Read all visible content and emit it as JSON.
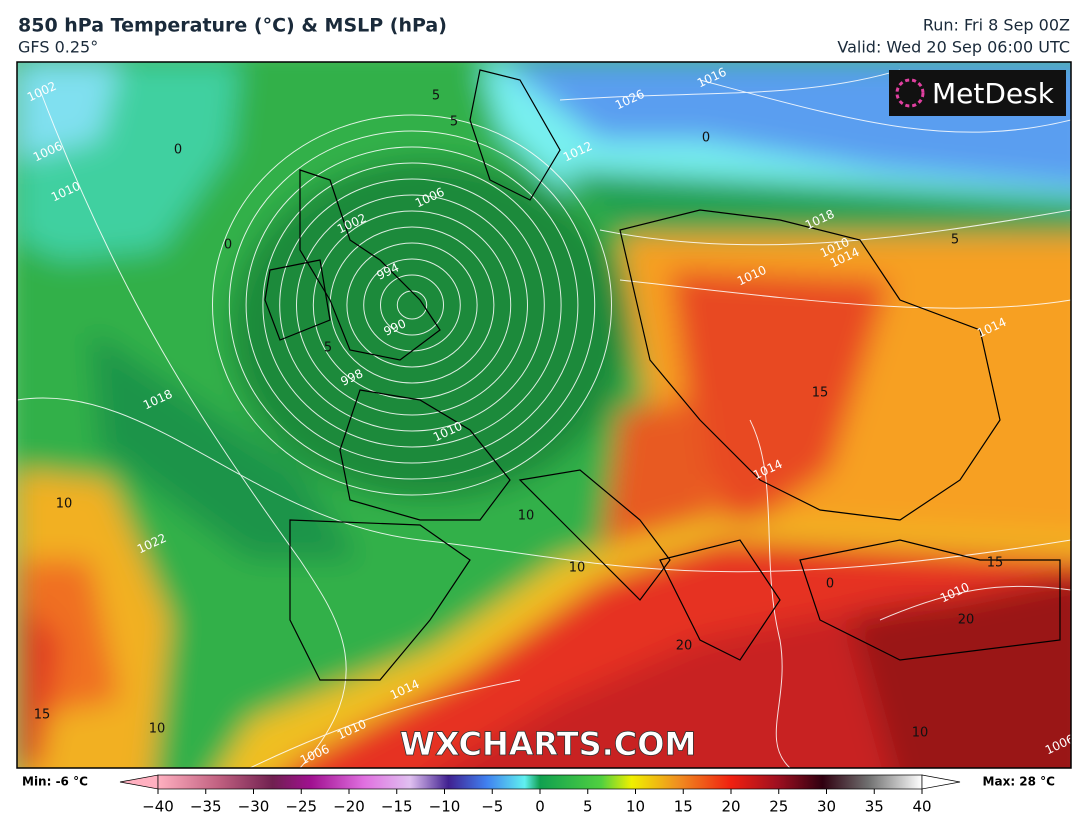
{
  "header": {
    "title": "850 hPa Temperature (°C) & MSLP (hPa)",
    "subtitle": "GFS 0.25°",
    "run": "Run: Fri 8 Sep 00Z",
    "valid": "Valid: Wed 20 Sep 06:00 UTC"
  },
  "logo": "MetDesk",
  "watermark": "WXCHARTS.COM",
  "map": {
    "isobar_labels": [
      "1002",
      "1006",
      "1010",
      "1026",
      "1016",
      "1012",
      "1006",
      "1002",
      "994",
      "990",
      "998",
      "1010",
      "1018",
      "1022",
      "1018",
      "1010",
      "1014",
      "1010",
      "1014",
      "1014",
      "1010",
      "1014",
      "1010",
      "1006",
      "1006"
    ],
    "temperature_labels": [
      "5",
      "5",
      "0",
      "0",
      "0",
      "0",
      "5",
      "10",
      "10",
      "10",
      "10",
      "15",
      "15",
      "15",
      "20",
      "20",
      "10",
      "5"
    ]
  },
  "colorbar": {
    "min_label": "Min: -6 °C",
    "max_label": "Max: 28 °C",
    "lim": [
      -40,
      40
    ],
    "ticks": [
      {
        "value": -40,
        "label": "−40"
      },
      {
        "value": -35,
        "label": "−35"
      },
      {
        "value": -30,
        "label": "−30"
      },
      {
        "value": -25,
        "label": "−25"
      },
      {
        "value": -20,
        "label": "−20"
      },
      {
        "value": -15,
        "label": "−15"
      },
      {
        "value": -10,
        "label": "−10"
      },
      {
        "value": -5,
        "label": "−5"
      },
      0,
      5,
      10,
      15,
      20,
      25,
      30,
      35,
      40
    ]
  }
}
